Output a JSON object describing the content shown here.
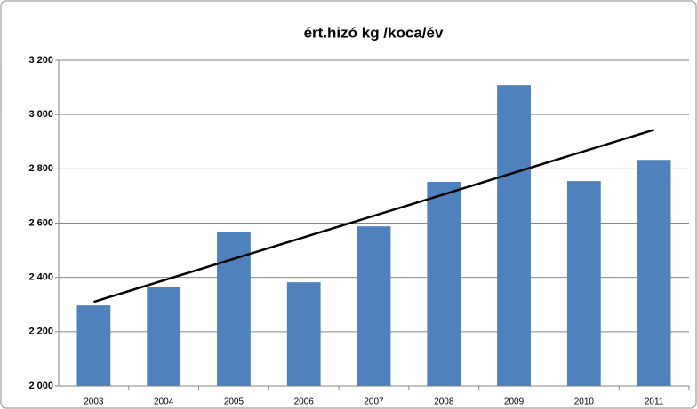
{
  "chart_data": {
    "type": "bar",
    "title": "ért.hizó kg /koca/év",
    "categories": [
      "2003",
      "2004",
      "2005",
      "2006",
      "2007",
      "2008",
      "2009",
      "2010",
      "2011"
    ],
    "values": [
      2297,
      2363,
      2569,
      2382,
      2588,
      2752,
      3108,
      2755,
      2833
    ],
    "color": "#4f81bd",
    "ylim": [
      2000,
      3200
    ],
    "yticks": [
      {
        "value": 2000,
        "label": "2 000"
      },
      {
        "value": 2200,
        "label": "2 200"
      },
      {
        "value": 2400,
        "label": "2 400"
      },
      {
        "value": 2600,
        "label": "2 600"
      },
      {
        "value": 2800,
        "label": "2 800"
      },
      {
        "value": 3000,
        "label": "3 000"
      },
      {
        "value": 3200,
        "label": "3 200"
      }
    ],
    "grid": true,
    "trendline": {
      "start": 2310,
      "end": 2944,
      "color": "#000000"
    }
  }
}
